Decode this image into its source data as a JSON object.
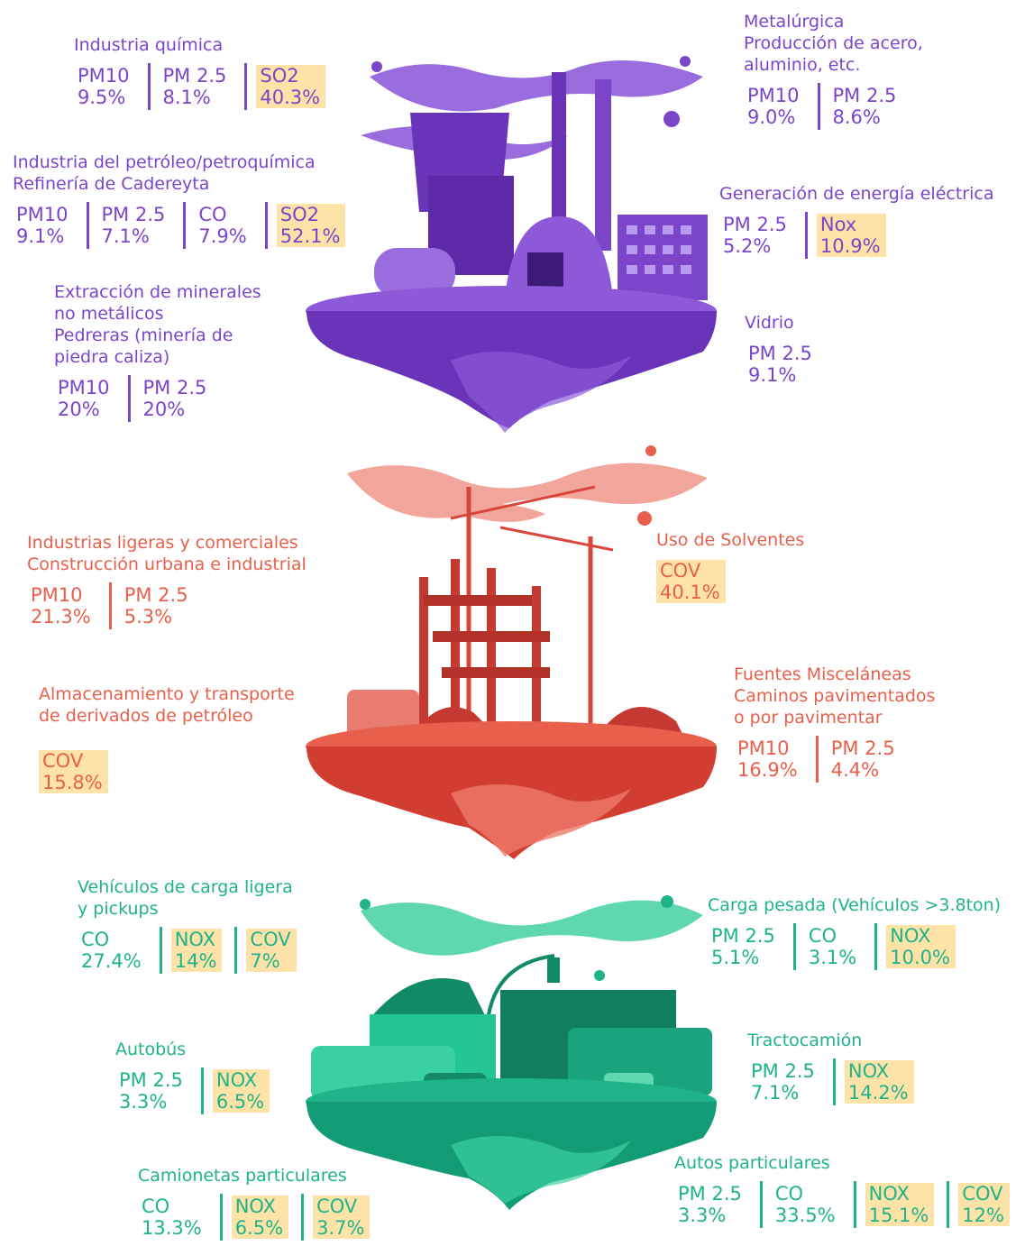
{
  "islands": [
    {
      "color": "#7a45c9",
      "sources": [
        {
          "title": [
            "Industria química"
          ],
          "metrics": [
            {
              "label": "PM10",
              "value": "9.5%"
            },
            {
              "label": "PM 2.5",
              "value": "8.1%"
            },
            {
              "label": "SO2",
              "value": "40.3%",
              "highlight": true
            }
          ]
        },
        {
          "title": [
            "Industria del petróleo/petroquímica",
            "Refinería de Cadereyta"
          ],
          "metrics": [
            {
              "label": "PM10",
              "value": "9.1%"
            },
            {
              "label": "PM 2.5",
              "value": "7.1%"
            },
            {
              "label": "CO",
              "value": "7.9%"
            },
            {
              "label": "SO2",
              "value": "52.1%",
              "highlight": true
            }
          ]
        },
        {
          "title": [
            "Extracción de minerales",
            "no metálicos",
            "Pedreras (minería de",
            "piedra caliza)"
          ],
          "metrics": [
            {
              "label": "PM10",
              "value": "20%"
            },
            {
              "label": "PM 2.5",
              "value": "20%"
            }
          ]
        },
        {
          "title": [
            "Metalúrgica",
            "Producción de acero,",
            "aluminio, etc."
          ],
          "metrics": [
            {
              "label": "PM10",
              "value": "9.0%"
            },
            {
              "label": "PM 2.5",
              "value": "8.6%"
            }
          ]
        },
        {
          "title": [
            "Generación de energía eléctrica"
          ],
          "metrics": [
            {
              "label": "PM 2.5",
              "value": "5.2%"
            },
            {
              "label": "Nox",
              "value": "10.9%",
              "highlight": true
            }
          ]
        },
        {
          "title": [
            "Vidrio"
          ],
          "metrics": [
            {
              "label": "PM 2.5",
              "value": "9.1%"
            }
          ]
        }
      ]
    },
    {
      "color": "#e8604c",
      "sources": [
        {
          "title": [
            "Industrias ligeras y comerciales",
            "Construcción urbana e industrial"
          ],
          "metrics": [
            {
              "label": "PM10",
              "value": "21.3%"
            },
            {
              "label": "PM 2.5",
              "value": "5.3%"
            }
          ]
        },
        {
          "title": [
            "Almacenamiento y transporte",
            "de derivados de petróleo"
          ],
          "metrics": [
            {
              "label": "COV",
              "value": "15.8%",
              "highlight": true
            }
          ]
        },
        {
          "title": [
            "Uso de Solventes"
          ],
          "metrics": [
            {
              "label": "COV",
              "value": "40.1%",
              "highlight": true
            }
          ]
        },
        {
          "title": [
            "Fuentes Misceláneas",
            "Caminos pavimentados",
            "o por pavimentar"
          ],
          "metrics": [
            {
              "label": "PM10",
              "value": "16.9%"
            },
            {
              "label": "PM 2.5",
              "value": "4.4%"
            }
          ]
        }
      ]
    },
    {
      "color": "#1fb38a",
      "sources": [
        {
          "title": [
            "Vehículos de carga ligera",
            "y pickups"
          ],
          "metrics": [
            {
              "label": "CO",
              "value": "27.4%"
            },
            {
              "label": "NOX",
              "value": "14%",
              "highlight": true
            },
            {
              "label": "COV",
              "value": "7%",
              "highlight": true
            }
          ]
        },
        {
          "title": [
            "Autobús"
          ],
          "metrics": [
            {
              "label": "PM 2.5",
              "value": "3.3%"
            },
            {
              "label": "NOX",
              "value": "6.5%",
              "highlight": true
            }
          ]
        },
        {
          "title": [
            "Camionetas particulares"
          ],
          "metrics": [
            {
              "label": "CO",
              "value": "13.3%"
            },
            {
              "label": "NOX",
              "value": "6.5%",
              "highlight": true
            },
            {
              "label": "COV",
              "value": "3.7%",
              "highlight": true
            }
          ]
        },
        {
          "title": [
            "Carga pesada (Vehículos >3.8ton)"
          ],
          "metrics": [
            {
              "label": "PM 2.5",
              "value": "5.1%"
            },
            {
              "label": "CO",
              "value": "3.1%"
            },
            {
              "label": "NOX",
              "value": "10.0%",
              "highlight": true
            }
          ]
        },
        {
          "title": [
            "Tractocamión"
          ],
          "metrics": [
            {
              "label": "PM 2.5",
              "value": "7.1%"
            },
            {
              "label": "NOX",
              "value": "14.2%",
              "highlight": true
            }
          ]
        },
        {
          "title": [
            "Autos particulares"
          ],
          "metrics": [
            {
              "label": "PM 2.5",
              "value": "3.3%"
            },
            {
              "label": "CO",
              "value": "33.5%"
            },
            {
              "label": "NOX",
              "value": "15.1%",
              "highlight": true
            },
            {
              "label": "COV",
              "value": "12%",
              "highlight": true
            }
          ]
        }
      ]
    }
  ]
}
